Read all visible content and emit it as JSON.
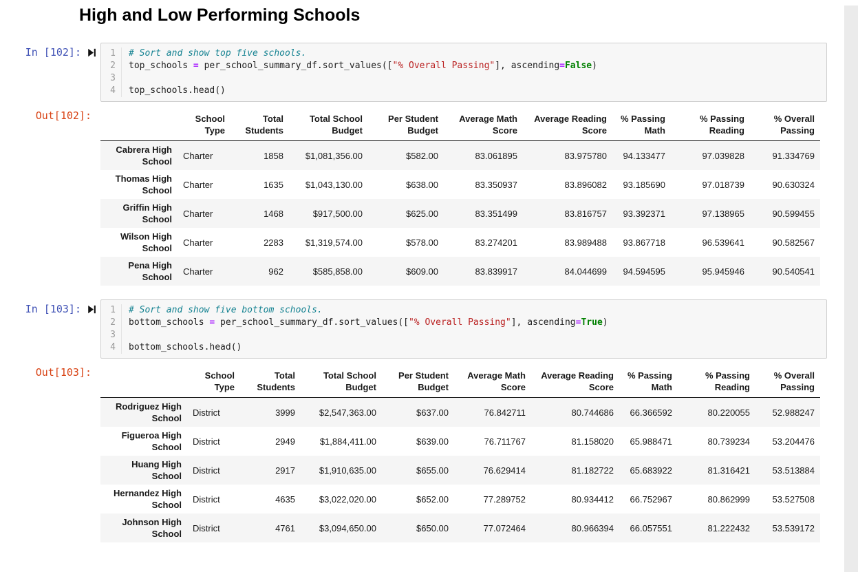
{
  "page": {
    "title": "High and Low Performing Schools"
  },
  "colors": {
    "in_prompt": "#3f51b5",
    "out_prompt": "#d84315",
    "comment": "#148291",
    "string": "#ba2121",
    "keyword": "#008000",
    "operator": "#aa22ff",
    "plain": "#212121"
  },
  "cells": [
    {
      "in_label": "In [102]:",
      "out_label": "Out[102]:",
      "run_icon": "step-forward-icon",
      "code_lines": [
        [
          {
            "t": "# Sort and show top five schools.",
            "s": "comment"
          }
        ],
        [
          {
            "t": "top_schools ",
            "s": "plain"
          },
          {
            "t": "=",
            "s": "operator"
          },
          {
            "t": " per_school_summary_df.sort_values([",
            "s": "plain"
          },
          {
            "t": "\"% Overall Passing\"",
            "s": "string"
          },
          {
            "t": "], ascending",
            "s": "plain"
          },
          {
            "t": "=",
            "s": "operator"
          },
          {
            "t": "False",
            "s": "keyword"
          },
          {
            "t": ")",
            "s": "plain"
          }
        ],
        [],
        [
          {
            "t": "top_schools.head()",
            "s": "plain"
          }
        ]
      ],
      "table": {
        "columns": [
          "School Type",
          "Total Students",
          "Total School Budget",
          "Per Student Budget",
          "Average Math Score",
          "Average Reading Score",
          "% Passing Math",
          "% Passing Reading",
          "% Overall Passing"
        ],
        "align": [
          "left",
          "right",
          "right",
          "right",
          "right",
          "right",
          "right",
          "right",
          "right"
        ],
        "rows": [
          {
            "index": "Cabrera High School",
            "cells": [
              "Charter",
              "1858",
              "$1,081,356.00",
              "$582.00",
              "83.061895",
              "83.975780",
              "94.133477",
              "97.039828",
              "91.334769"
            ]
          },
          {
            "index": "Thomas High School",
            "cells": [
              "Charter",
              "1635",
              "$1,043,130.00",
              "$638.00",
              "83.350937",
              "83.896082",
              "93.185690",
              "97.018739",
              "90.630324"
            ]
          },
          {
            "index": "Griffin High School",
            "cells": [
              "Charter",
              "1468",
              "$917,500.00",
              "$625.00",
              "83.351499",
              "83.816757",
              "93.392371",
              "97.138965",
              "90.599455"
            ]
          },
          {
            "index": "Wilson High School",
            "cells": [
              "Charter",
              "2283",
              "$1,319,574.00",
              "$578.00",
              "83.274201",
              "83.989488",
              "93.867718",
              "96.539641",
              "90.582567"
            ]
          },
          {
            "index": "Pena High School",
            "cells": [
              "Charter",
              "962",
              "$585,858.00",
              "$609.00",
              "83.839917",
              "84.044699",
              "94.594595",
              "95.945946",
              "90.540541"
            ]
          }
        ]
      }
    },
    {
      "in_label": "In [103]:",
      "out_label": "Out[103]:",
      "run_icon": "step-forward-icon",
      "code_lines": [
        [
          {
            "t": "# Sort and show five bottom schools.",
            "s": "comment"
          }
        ],
        [
          {
            "t": "bottom_schools ",
            "s": "plain"
          },
          {
            "t": "=",
            "s": "operator"
          },
          {
            "t": " per_school_summary_df.sort_values([",
            "s": "plain"
          },
          {
            "t": "\"% Overall Passing\"",
            "s": "string"
          },
          {
            "t": "], ascending",
            "s": "plain"
          },
          {
            "t": "=",
            "s": "operator"
          },
          {
            "t": "True",
            "s": "keyword"
          },
          {
            "t": ")",
            "s": "plain"
          }
        ],
        [],
        [
          {
            "t": "bottom_schools.head()",
            "s": "plain"
          }
        ]
      ],
      "table": {
        "columns": [
          "School Type",
          "Total Students",
          "Total School Budget",
          "Per Student Budget",
          "Average Math Score",
          "Average Reading Score",
          "% Passing Math",
          "% Passing Reading",
          "% Overall Passing"
        ],
        "align": [
          "left",
          "right",
          "right",
          "right",
          "right",
          "right",
          "right",
          "right",
          "right"
        ],
        "rows": [
          {
            "index": "Rodriguez High School",
            "cells": [
              "District",
              "3999",
              "$2,547,363.00",
              "$637.00",
              "76.842711",
              "80.744686",
              "66.366592",
              "80.220055",
              "52.988247"
            ]
          },
          {
            "index": "Figueroa High School",
            "cells": [
              "District",
              "2949",
              "$1,884,411.00",
              "$639.00",
              "76.711767",
              "81.158020",
              "65.988471",
              "80.739234",
              "53.204476"
            ]
          },
          {
            "index": "Huang High School",
            "cells": [
              "District",
              "2917",
              "$1,910,635.00",
              "$655.00",
              "76.629414",
              "81.182722",
              "65.683922",
              "81.316421",
              "53.513884"
            ]
          },
          {
            "index": "Hernandez High School",
            "cells": [
              "District",
              "4635",
              "$3,022,020.00",
              "$652.00",
              "77.289752",
              "80.934412",
              "66.752967",
              "80.862999",
              "53.527508"
            ]
          },
          {
            "index": "Johnson High School",
            "cells": [
              "District",
              "4761",
              "$3,094,650.00",
              "$650.00",
              "77.072464",
              "80.966394",
              "66.057551",
              "81.222432",
              "53.539172"
            ]
          }
        ]
      }
    }
  ]
}
